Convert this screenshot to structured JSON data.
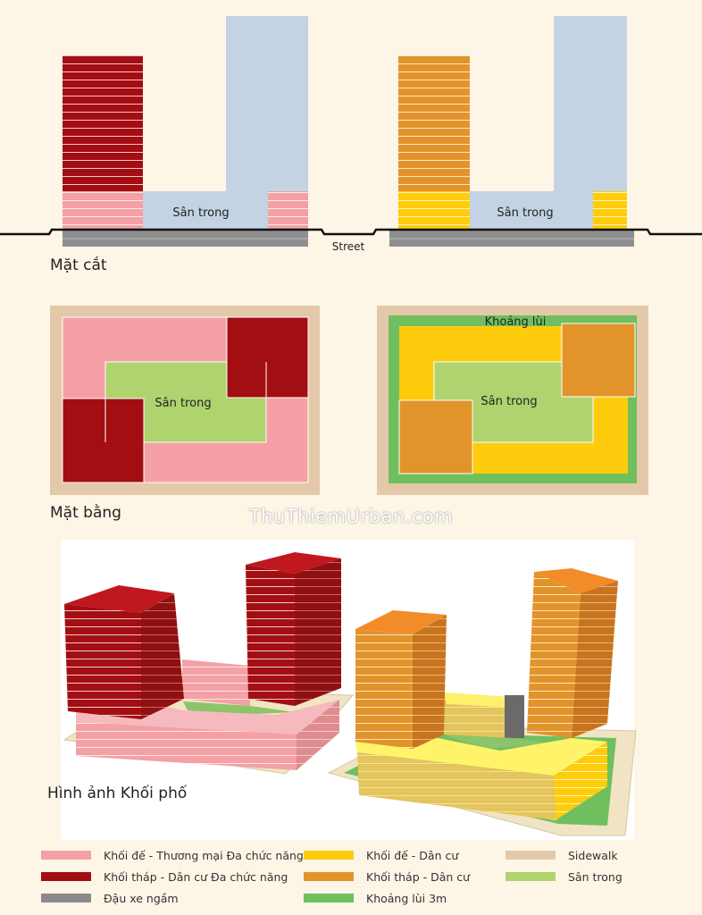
{
  "sections": {
    "section_label": "Mặt cắt",
    "plan_label": "Mặt bằng",
    "massing_label": "Hình ảnh Khối phố"
  },
  "labels": {
    "courtyard": "Sân trong",
    "street": "Street",
    "setback": "Khoảng lùi"
  },
  "watermark": "ThuThiemUrban.com",
  "legend": [
    {
      "label": "Khối đế - Thương mại Đa chức năng",
      "color": "#f4a0a4"
    },
    {
      "label": "Khối tháp - Dân cư Đa chức năng",
      "color": "#a30e13"
    },
    {
      "label": "Đậu xe ngầm",
      "color": "#8a8a8a"
    },
    {
      "label": "Khối đế - Dân cư",
      "color": "#ffcc0d"
    },
    {
      "label": "Khối tháp - Dân cư",
      "color": "#e2942a"
    },
    {
      "label": "Khoảng lùi 3m",
      "color": "#6fbf5f"
    },
    {
      "label": "Sidewalk",
      "color": "#e3c9aa"
    },
    {
      "label": "Sân trong",
      "color": "#aed36f"
    }
  ]
}
